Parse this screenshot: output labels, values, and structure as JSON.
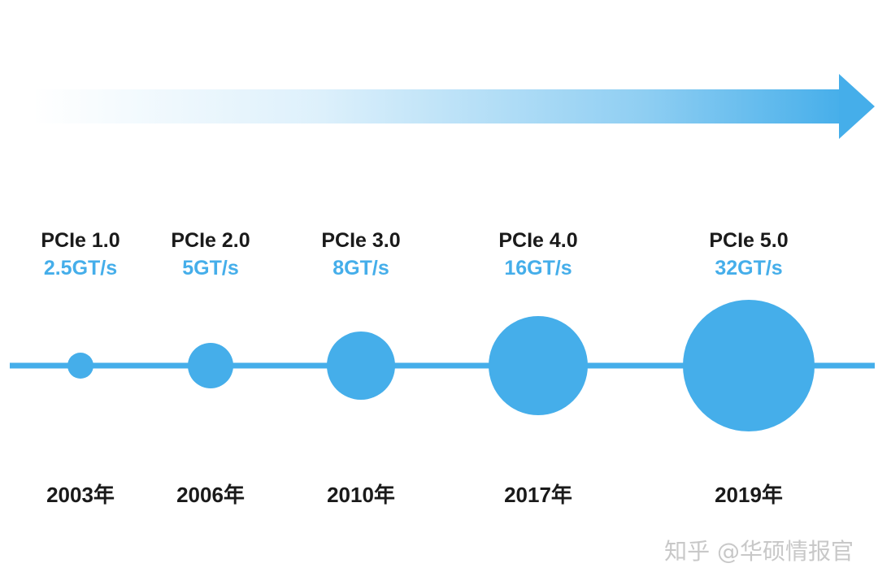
{
  "colors": {
    "accent": "#45aeea",
    "timeline": "#45aeea",
    "text": "#1a1a1a",
    "watermark": "#c8c8c8"
  },
  "generations": [
    {
      "name": "PCIe 1.0",
      "speed": "2.5GT/s",
      "speed_value": 2.5,
      "year": "2003年"
    },
    {
      "name": "PCIe 2.0",
      "speed": "5GT/s",
      "speed_value": 5,
      "year": "2006年"
    },
    {
      "name": "PCIe 3.0",
      "speed": "8GT/s",
      "speed_value": 8,
      "year": "2010年"
    },
    {
      "name": "PCIe 4.0",
      "speed": "16GT/s",
      "speed_value": 16,
      "year": "2017年"
    },
    {
      "name": "PCIe 5.0",
      "speed": "32GT/s",
      "speed_value": 32,
      "year": "2019年"
    }
  ],
  "watermark": "知乎 @华硕情报官"
}
